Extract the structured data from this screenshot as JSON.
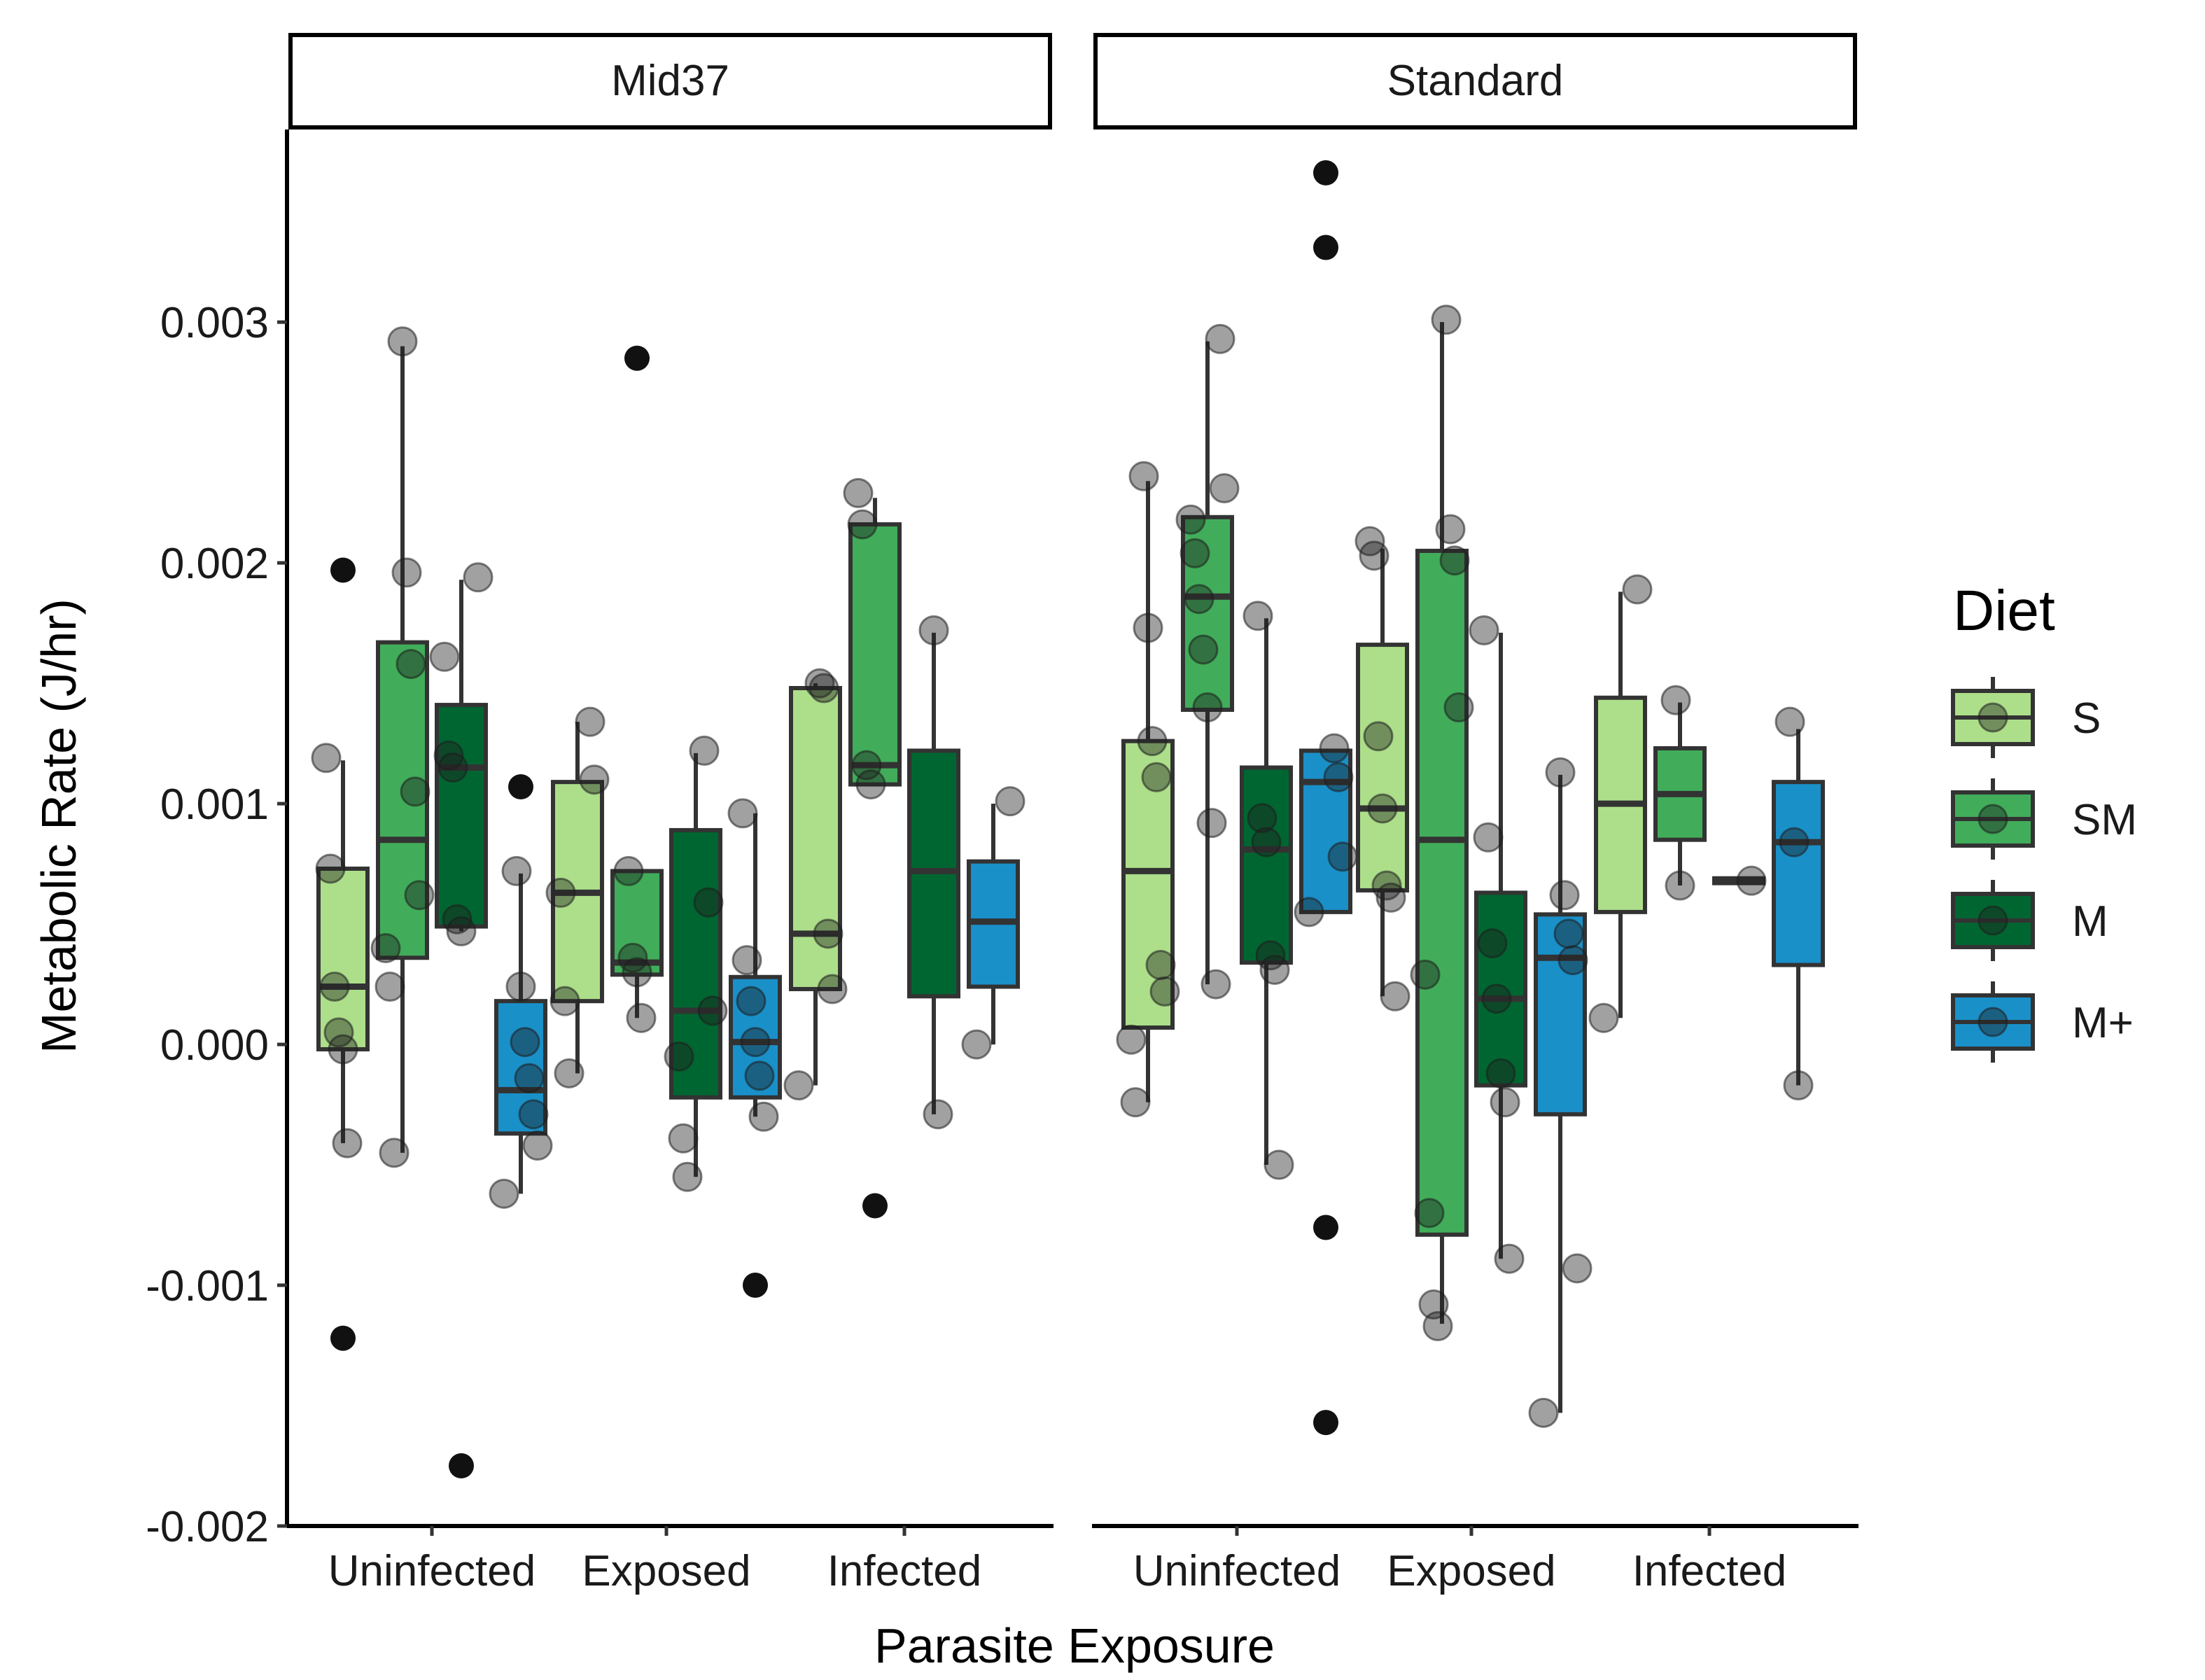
{
  "chart_data": {
    "type": "box",
    "xlabel": "Parasite Exposure",
    "ylabel": "Metabolic Rate (J/hr)",
    "ylim": [
      -0.002,
      0.0038
    ],
    "yticks": [
      -0.002,
      -0.001,
      0.0,
      0.001,
      0.002,
      0.003
    ],
    "ytick_labels": [
      "-0.002",
      "-0.001",
      "0.000",
      "0.001",
      "0.002",
      "0.003"
    ],
    "facets": [
      "Mid37",
      "Standard"
    ],
    "categories": [
      "Uninfected",
      "Exposed",
      "Infected"
    ],
    "legend": {
      "title": "Diet",
      "position": "right",
      "items": [
        {
          "name": "S",
          "color": "#addf8a"
        },
        {
          "name": "SM",
          "color": "#41ad5a"
        },
        {
          "name": "M",
          "color": "#006631"
        },
        {
          "name": "M+",
          "color": "#1a90c9"
        }
      ]
    },
    "grid": false,
    "groups": [
      {
        "facet": "Mid37",
        "category": "Uninfected",
        "diet": "S",
        "q1": -2e-05,
        "median": 0.00024,
        "q3": 0.00073,
        "lo": -0.00041,
        "hi": 0.00118,
        "outliers": [
          0.00197,
          -0.00122
        ],
        "points": [
          0.00119,
          0.00073,
          0.00024,
          5e-05,
          -2e-05,
          -0.00041
        ]
      },
      {
        "facet": "Mid37",
        "category": "Uninfected",
        "diet": "SM",
        "q1": 0.00036,
        "median": 0.00085,
        "q3": 0.00167,
        "lo": -0.00045,
        "hi": 0.0029,
        "outliers": [],
        "points": [
          0.00292,
          0.00196,
          0.00158,
          0.00105,
          0.00062,
          0.0004,
          0.00024,
          -0.00045
        ]
      },
      {
        "facet": "Mid37",
        "category": "Uninfected",
        "diet": "M",
        "q1": 0.00049,
        "median": 0.00115,
        "q3": 0.00141,
        "lo": 0.00047,
        "hi": 0.00193,
        "outliers": [
          -0.00175
        ],
        "points": [
          0.00194,
          0.00161,
          0.0012,
          0.00115,
          0.00052,
          0.00047
        ]
      },
      {
        "facet": "Mid37",
        "category": "Uninfected",
        "diet": "M+",
        "q1": -0.00037,
        "median": -0.00019,
        "q3": 0.00018,
        "lo": -0.00062,
        "hi": 0.00071,
        "outliers": [
          0.00107
        ],
        "points": [
          0.00072,
          0.00024,
          1e-05,
          -0.00014,
          -0.00029,
          -0.00042,
          -0.00062
        ]
      },
      {
        "facet": "Mid37",
        "category": "Exposed",
        "diet": "S",
        "q1": 0.00018,
        "median": 0.00063,
        "q3": 0.00109,
        "lo": -0.00012,
        "hi": 0.00134,
        "outliers": [],
        "points": [
          0.00134,
          0.0011,
          0.00063,
          0.00018,
          -0.00012
        ]
      },
      {
        "facet": "Mid37",
        "category": "Exposed",
        "diet": "SM",
        "q1": 0.00029,
        "median": 0.00034,
        "q3": 0.00072,
        "lo": 0.00011,
        "hi": 0.00072,
        "outliers": [
          0.00285
        ],
        "points": [
          0.00072,
          0.00036,
          0.0003,
          0.00011
        ]
      },
      {
        "facet": "Mid37",
        "category": "Exposed",
        "diet": "M",
        "q1": -0.00022,
        "median": 0.00014,
        "q3": 0.00089,
        "lo": -0.00055,
        "hi": 0.00121,
        "outliers": [],
        "points": [
          0.00122,
          0.00059,
          0.00014,
          -5e-05,
          -0.00039,
          -0.00055
        ]
      },
      {
        "facet": "Mid37",
        "category": "Exposed",
        "diet": "M+",
        "q1": -0.00022,
        "median": 1e-05,
        "q3": 0.00028,
        "lo": -0.0003,
        "hi": 0.00096,
        "outliers": [
          -0.001
        ],
        "points": [
          0.00096,
          0.00035,
          0.00018,
          1e-05,
          -0.00013,
          -0.0003
        ]
      },
      {
        "facet": "Mid37",
        "category": "Infected",
        "diet": "S",
        "q1": 0.00023,
        "median": 0.00046,
        "q3": 0.00148,
        "lo": -0.00017,
        "hi": 0.0015,
        "outliers": [],
        "points": [
          0.0015,
          0.00148,
          0.00046,
          0.00023,
          -0.00017
        ]
      },
      {
        "facet": "Mid37",
        "category": "Infected",
        "diet": "SM",
        "q1": 0.00108,
        "median": 0.00116,
        "q3": 0.00216,
        "lo": 0.00108,
        "hi": 0.00227,
        "outliers": [
          -0.00067
        ],
        "points": [
          0.00229,
          0.00216,
          0.00116,
          0.00108
        ]
      },
      {
        "facet": "Mid37",
        "category": "Infected",
        "diet": "M",
        "q1": 0.0002,
        "median": 0.00072,
        "q3": 0.00122,
        "lo": -0.00029,
        "hi": 0.00171,
        "outliers": [],
        "points": [
          0.00172,
          -0.00029
        ]
      },
      {
        "facet": "Mid37",
        "category": "Infected",
        "diet": "M+",
        "q1": 0.00024,
        "median": 0.00051,
        "q3": 0.00076,
        "lo": 0.0,
        "hi": 0.001,
        "outliers": [],
        "points": [
          0.00101,
          0.0
        ]
      },
      {
        "facet": "Standard",
        "category": "Uninfected",
        "diet": "S",
        "q1": 7e-05,
        "median": 0.00072,
        "q3": 0.00126,
        "lo": -0.00024,
        "hi": 0.00234,
        "outliers": [],
        "points": [
          0.00236,
          0.00173,
          0.00126,
          0.00111,
          0.00033,
          0.00022,
          2e-05,
          -0.00024
        ]
      },
      {
        "facet": "Standard",
        "category": "Uninfected",
        "diet": "SM",
        "q1": 0.00139,
        "median": 0.00186,
        "q3": 0.00219,
        "lo": 0.00025,
        "hi": 0.00292,
        "outliers": [],
        "points": [
          0.00293,
          0.00231,
          0.00218,
          0.00204,
          0.00185,
          0.00164,
          0.0014,
          0.00092,
          0.00025
        ]
      },
      {
        "facet": "Standard",
        "category": "Uninfected",
        "diet": "M",
        "q1": 0.00034,
        "median": 0.00081,
        "q3": 0.00115,
        "lo": -0.0005,
        "hi": 0.00177,
        "outliers": [],
        "points": [
          0.00178,
          0.00094,
          0.00084,
          0.00037,
          0.00031,
          -0.0005
        ]
      },
      {
        "facet": "Standard",
        "category": "Uninfected",
        "diet": "M+",
        "q1": 0.00055,
        "median": 0.00109,
        "q3": 0.00122,
        "lo": 0.00055,
        "hi": 0.00122,
        "outliers": [
          0.00362,
          0.00331,
          -0.00076,
          -0.00157
        ],
        "points": [
          0.00123,
          0.00111,
          0.00078,
          0.00055
        ]
      },
      {
        "facet": "Standard",
        "category": "Exposed",
        "diet": "S",
        "q1": 0.00064,
        "median": 0.00098,
        "q3": 0.00166,
        "lo": 0.0002,
        "hi": 0.00206,
        "outliers": [],
        "points": [
          0.00209,
          0.00203,
          0.00128,
          0.00098,
          0.00066,
          0.00061,
          0.0002
        ]
      },
      {
        "facet": "Standard",
        "category": "Exposed",
        "diet": "SM",
        "q1": -0.00079,
        "median": 0.00085,
        "q3": 0.00205,
        "lo": -0.00116,
        "hi": 0.003,
        "outliers": [],
        "points": [
          0.00301,
          0.00214,
          0.00201,
          0.0014,
          0.00029,
          -0.0007,
          -0.00108,
          -0.00117
        ]
      },
      {
        "facet": "Standard",
        "category": "Exposed",
        "diet": "M",
        "q1": -0.00017,
        "median": 0.00019,
        "q3": 0.00063,
        "lo": -0.00089,
        "hi": 0.00171,
        "outliers": [],
        "points": [
          0.00172,
          0.00086,
          0.00042,
          0.00019,
          -0.00012,
          -0.00024,
          -0.00089
        ]
      },
      {
        "facet": "Standard",
        "category": "Exposed",
        "diet": "M+",
        "q1": -0.00029,
        "median": 0.00036,
        "q3": 0.00054,
        "lo": -0.00153,
        "hi": 0.00112,
        "outliers": [],
        "points": [
          0.00113,
          0.00062,
          0.00046,
          0.00035,
          -0.00093,
          -0.00153
        ]
      },
      {
        "facet": "Standard",
        "category": "Infected",
        "diet": "S",
        "q1": 0.00055,
        "median": 0.001,
        "q3": 0.00144,
        "lo": 0.00011,
        "hi": 0.00188,
        "outliers": [],
        "points": [
          0.00189,
          0.00011
        ]
      },
      {
        "facet": "Standard",
        "category": "Infected",
        "diet": "SM",
        "q1": 0.00085,
        "median": 0.00104,
        "q3": 0.00123,
        "lo": 0.00066,
        "hi": 0.00142,
        "outliers": [],
        "points": [
          0.00143,
          0.00066
        ]
      },
      {
        "facet": "Standard",
        "category": "Infected",
        "diet": "M",
        "q1": 0.00067,
        "median": 0.00068,
        "q3": 0.00069,
        "lo": 0.00067,
        "hi": 0.00069,
        "outliers": [],
        "points": [
          0.00068
        ]
      },
      {
        "facet": "Standard",
        "category": "Infected",
        "diet": "M+",
        "q1": 0.00033,
        "median": 0.00084,
        "q3": 0.00109,
        "lo": -0.00017,
        "hi": 0.00131,
        "outliers": [],
        "points": [
          0.00134,
          0.00084,
          -0.00017
        ]
      }
    ]
  }
}
